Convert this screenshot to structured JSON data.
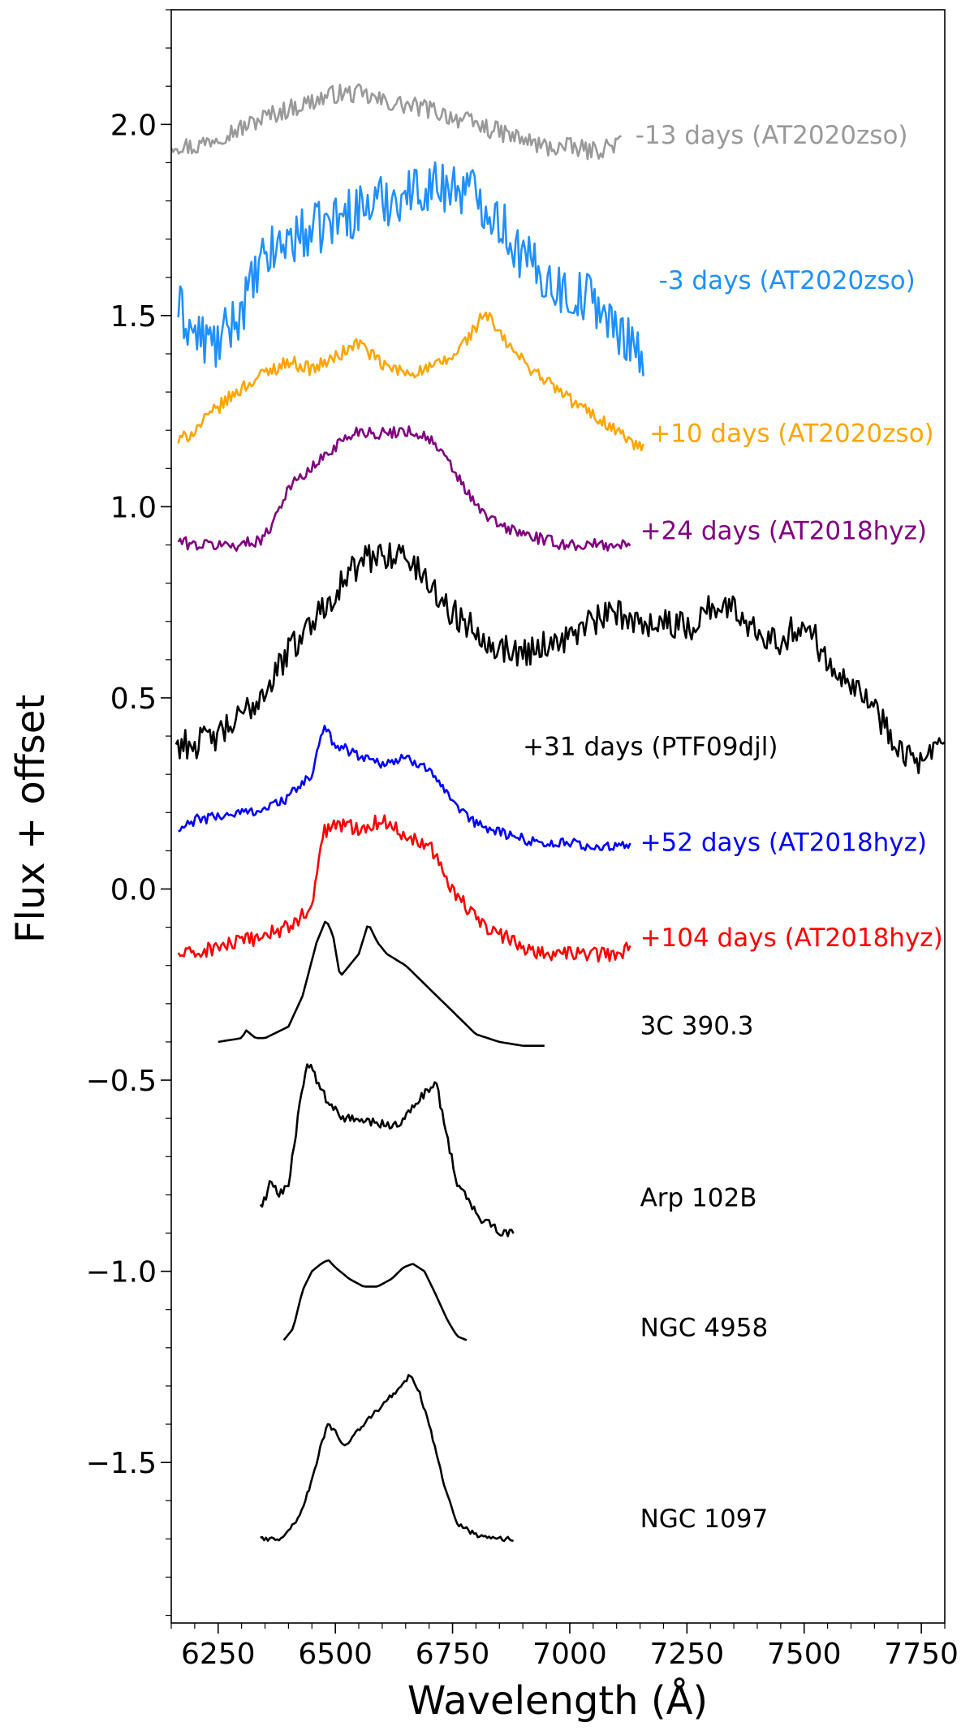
{
  "chart_data": {
    "type": "line",
    "title": "",
    "xlabel": "Wavelength (Å)",
    "ylabel": "Flux + offset",
    "xlim": [
      6150,
      7800
    ],
    "ylim": [
      -1.92,
      2.3
    ],
    "x_ticks": [
      6250,
      6500,
      6750,
      7000,
      7250,
      7500,
      7750
    ],
    "x_tick_labels": [
      "6250",
      "6500",
      "6750",
      "7000",
      "7250",
      "7500",
      "7750"
    ],
    "y_ticks": [
      2.0,
      1.5,
      1.0,
      0.5,
      0.0,
      -0.5,
      -1.0,
      -1.5
    ],
    "y_tick_labels": [
      "2.0",
      "1.5",
      "1.0",
      "0.5",
      "0.0",
      "−0.5",
      "−1.0",
      "−1.5"
    ],
    "grid": false,
    "series": [
      {
        "name": "-13 days (AT2020zso)",
        "color": "#999999",
        "label_x": 7140,
        "label_y": 1.95,
        "x": [
          6150,
          6200,
          6250,
          6300,
          6350,
          6400,
          6450,
          6500,
          6550,
          6600,
          6650,
          6700,
          6750,
          6800,
          6850,
          6900,
          6950,
          7000,
          7050,
          7100,
          7110
        ],
        "y": [
          1.95,
          1.94,
          1.97,
          1.99,
          2.02,
          2.04,
          2.06,
          2.08,
          2.08,
          2.06,
          2.05,
          2.04,
          2.02,
          2.0,
          1.98,
          1.96,
          1.94,
          1.94,
          1.93,
          1.95,
          1.95
        ],
        "noise": 0.025
      },
      {
        "name": "-3 days (AT2020zso)",
        "color": "#1e90ff",
        "label_x": 7190,
        "label_y": 1.57,
        "x": [
          6165,
          6200,
          6250,
          6300,
          6350,
          6400,
          6450,
          6500,
          6550,
          6600,
          6650,
          6700,
          6750,
          6800,
          6850,
          6900,
          6950,
          7000,
          7050,
          7100,
          7130,
          7160
        ],
        "y": [
          1.52,
          1.45,
          1.42,
          1.52,
          1.65,
          1.7,
          1.72,
          1.75,
          1.78,
          1.8,
          1.82,
          1.84,
          1.84,
          1.82,
          1.75,
          1.65,
          1.6,
          1.55,
          1.55,
          1.45,
          1.45,
          1.38
        ],
        "noise": 0.07
      },
      {
        "name": "+10 days (AT2020zso)",
        "color": "#ffa500",
        "label_x": 7170,
        "label_y": 1.17,
        "x": [
          6165,
          6200,
          6250,
          6300,
          6350,
          6400,
          6450,
          6500,
          6550,
          6600,
          6650,
          6700,
          6750,
          6800,
          6820,
          6850,
          6900,
          6950,
          7000,
          7050,
          7100,
          7150,
          7160
        ],
        "y": [
          1.17,
          1.2,
          1.26,
          1.31,
          1.35,
          1.38,
          1.36,
          1.39,
          1.43,
          1.37,
          1.35,
          1.36,
          1.39,
          1.47,
          1.51,
          1.45,
          1.38,
          1.33,
          1.28,
          1.24,
          1.2,
          1.15,
          1.18
        ],
        "noise": 0.018
      },
      {
        "name": "+24 days (AT2018hyz)",
        "color": "#800080",
        "label_x": 7150,
        "label_y": 0.915,
        "x": [
          6165,
          6200,
          6250,
          6300,
          6350,
          6400,
          6450,
          6500,
          6550,
          6600,
          6650,
          6700,
          6750,
          6800,
          6850,
          6900,
          6950,
          7000,
          7050,
          7100,
          7130
        ],
        "y": [
          0.91,
          0.9,
          0.9,
          0.9,
          0.92,
          1.05,
          1.1,
          1.16,
          1.2,
          1.19,
          1.2,
          1.18,
          1.1,
          1.0,
          0.95,
          0.93,
          0.91,
          0.9,
          0.9,
          0.9,
          0.9
        ],
        "noise": 0.016
      },
      {
        "name": "+31 days (PTF09djl)",
        "color": "#000000",
        "label_x": 6900,
        "label_y": 0.35,
        "x": [
          6160,
          6200,
          6250,
          6300,
          6350,
          6400,
          6450,
          6500,
          6550,
          6600,
          6650,
          6700,
          6750,
          6800,
          6850,
          6900,
          6950,
          7000,
          7050,
          7100,
          7150,
          7200,
          7250,
          7300,
          7350,
          7400,
          7450,
          7500,
          7550,
          7600,
          7650,
          7700,
          7750,
          7800
        ],
        "y": [
          0.38,
          0.38,
          0.4,
          0.45,
          0.52,
          0.62,
          0.7,
          0.78,
          0.85,
          0.88,
          0.87,
          0.8,
          0.72,
          0.68,
          0.63,
          0.62,
          0.64,
          0.66,
          0.7,
          0.72,
          0.7,
          0.7,
          0.68,
          0.74,
          0.73,
          0.68,
          0.65,
          0.7,
          0.6,
          0.55,
          0.47,
          0.38,
          0.32,
          0.38
        ],
        "noise": 0.04
      },
      {
        "name": "+52 days (AT2018hyz)",
        "color": "#0000ff",
        "label_x": 7150,
        "label_y": 0.1,
        "x": [
          6165,
          6200,
          6250,
          6300,
          6350,
          6400,
          6450,
          6475,
          6500,
          6550,
          6600,
          6650,
          6700,
          6750,
          6800,
          6850,
          6900,
          6950,
          7000,
          7050,
          7100,
          7130
        ],
        "y": [
          0.15,
          0.18,
          0.19,
          0.2,
          0.21,
          0.24,
          0.3,
          0.42,
          0.38,
          0.35,
          0.33,
          0.34,
          0.32,
          0.22,
          0.17,
          0.15,
          0.13,
          0.12,
          0.12,
          0.11,
          0.11,
          0.11
        ],
        "noise": 0.014
      },
      {
        "name": "+104 days (AT2018hyz)",
        "color": "#ff0000",
        "label_x": 7150,
        "label_y": -0.15,
        "x": [
          6165,
          6200,
          6250,
          6300,
          6350,
          6400,
          6450,
          6475,
          6500,
          6550,
          6600,
          6650,
          6700,
          6750,
          6800,
          6850,
          6900,
          6950,
          7000,
          7050,
          7100,
          7130
        ],
        "y": [
          -0.17,
          -0.17,
          -0.15,
          -0.14,
          -0.12,
          -0.1,
          -0.05,
          0.15,
          0.17,
          0.16,
          0.18,
          0.14,
          0.12,
          0.0,
          -0.08,
          -0.12,
          -0.15,
          -0.17,
          -0.17,
          -0.17,
          -0.17,
          -0.15
        ],
        "noise": 0.02
      },
      {
        "name": "3C 390.3",
        "color": "#000000",
        "label_x": 7150,
        "label_y": -0.38,
        "x": [
          6250,
          6300,
          6310,
          6330,
          6350,
          6400,
          6430,
          6460,
          6480,
          6495,
          6510,
          6530,
          6550,
          6570,
          6590,
          6610,
          6650,
          6700,
          6750,
          6800,
          6850,
          6900,
          6950
        ],
        "y": [
          -0.4,
          -0.39,
          -0.37,
          -0.39,
          -0.39,
          -0.36,
          -0.28,
          -0.14,
          -0.08,
          -0.12,
          -0.23,
          -0.2,
          -0.17,
          -0.09,
          -0.14,
          -0.17,
          -0.2,
          -0.26,
          -0.32,
          -0.38,
          -0.4,
          -0.41,
          -0.41
        ],
        "noise": 0.0
      },
      {
        "name": "Arp 102B",
        "color": "#000000",
        "label_x": 7150,
        "label_y": -0.83,
        "x": [
          6340,
          6350,
          6360,
          6380,
          6400,
          6420,
          6440,
          6460,
          6480,
          6500,
          6520,
          6570,
          6620,
          6650,
          6680,
          6700,
          6715,
          6730,
          6760,
          6800,
          6830,
          6860,
          6880
        ],
        "y": [
          -0.83,
          -0.81,
          -0.77,
          -0.8,
          -0.77,
          -0.6,
          -0.45,
          -0.5,
          -0.55,
          -0.58,
          -0.6,
          -0.61,
          -0.62,
          -0.6,
          -0.55,
          -0.52,
          -0.5,
          -0.6,
          -0.77,
          -0.85,
          -0.88,
          -0.9,
          -0.9
        ],
        "noise": 0.012
      },
      {
        "name": "NGC 4958",
        "color": "#000000",
        "label_x": 7150,
        "label_y": -1.17,
        "x": [
          6390,
          6410,
          6430,
          6450,
          6470,
          6485,
          6500,
          6530,
          6560,
          6590,
          6620,
          6645,
          6665,
          6690,
          6710,
          6740,
          6760,
          6780
        ],
        "y": [
          -1.18,
          -1.15,
          -1.05,
          -1.0,
          -0.98,
          -0.97,
          -0.99,
          -1.02,
          -1.04,
          -1.04,
          -1.02,
          -0.99,
          -0.98,
          -1.0,
          -1.05,
          -1.13,
          -1.17,
          -1.18
        ],
        "noise": 0.0
      },
      {
        "name": "NGC 1097",
        "color": "#000000",
        "label_x": 7150,
        "label_y": -1.67,
        "x": [
          6340,
          6380,
          6420,
          6450,
          6470,
          6485,
          6500,
          6510,
          6520,
          6560,
          6600,
          6640,
          6660,
          6680,
          6700,
          6730,
          6760,
          6800,
          6840,
          6880
        ],
        "y": [
          -1.7,
          -1.7,
          -1.65,
          -1.55,
          -1.45,
          -1.4,
          -1.42,
          -1.45,
          -1.46,
          -1.4,
          -1.35,
          -1.3,
          -1.27,
          -1.32,
          -1.4,
          -1.55,
          -1.66,
          -1.69,
          -1.7,
          -1.7
        ],
        "noise": 0.006
      }
    ]
  }
}
